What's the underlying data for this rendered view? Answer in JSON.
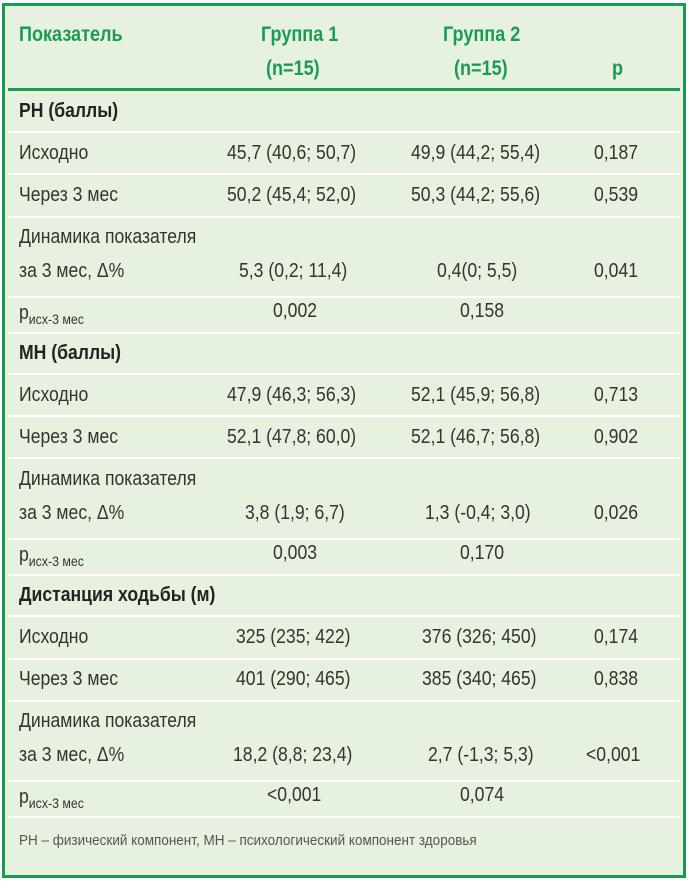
{
  "header": {
    "col_label": "Показатель",
    "group1_name": "Группа 1",
    "group1_n": "(n=15)",
    "group2_name": "Группа 2",
    "group2_n": "(n=15)",
    "p_label": "p"
  },
  "sections": [
    {
      "title": "РН (баллы)",
      "rows": [
        {
          "label": "Исходно",
          "g1": "45,7 (40,6; 50,7)",
          "g2": "49,9 (44,2; 55,4)",
          "p": "0,187"
        },
        {
          "label": "Через 3 мес",
          "g1": "50,2 (45,4; 52,0)",
          "g2": "50,3 (44,2; 55,6)",
          "p": "0,539"
        },
        {
          "label_line1": "Динамика показателя",
          "label_line2": "за 3 мес, Δ%",
          "g1": "5,3 (0,2; 11,4)",
          "g2": "0,4(0; 5,5)",
          "p": "0,041"
        }
      ],
      "p_row": {
        "label_main": "р",
        "label_sub": "исх-3 мес",
        "g1": "0,002",
        "g2": "0,158"
      }
    },
    {
      "title": "МН (баллы)",
      "rows": [
        {
          "label": "Исходно",
          "g1": "47,9 (46,3; 56,3)",
          "g2": "52,1 (45,9; 56,8)",
          "p": "0,713"
        },
        {
          "label": "Через 3 мес",
          "g1": "52,1 (47,8; 60,0)",
          "g2": "52,1 (46,7; 56,8)",
          "p": "0,902"
        },
        {
          "label_line1": "Динамика показателя",
          "label_line2": "за 3 мес, Δ%",
          "g1": "3,8 (1,9; 6,7)",
          "g2": "1,3 (-0,4; 3,0)",
          "p": "0,026"
        }
      ],
      "p_row": {
        "label_main": "р",
        "label_sub": "исх-3 мес",
        "g1": "0,003",
        "g2": "0,170"
      }
    },
    {
      "title": "Дистанция ходьбы (м)",
      "rows": [
        {
          "label": "Исходно",
          "g1": "325 (235; 422)",
          "g2": "376 (326; 450)",
          "p": "0,174"
        },
        {
          "label": "Через 3 мес",
          "g1": "401 (290; 465)",
          "g2": "385 (340; 465)",
          "p": "0,838"
        },
        {
          "label_line1": "Динамика показателя",
          "label_line2": "за 3 мес, Δ%",
          "g1": "18,2 (8,8; 23,4)",
          "g2": "2,7 (-1,3; 5,3)",
          "p": "<0,001"
        }
      ],
      "p_row": {
        "label_main": "р",
        "label_sub": "исх-3 мес",
        "g1": "<0,001",
        "g2": "0,074"
      }
    }
  ],
  "footnote": "РН – физический компонент, МН – психологический компонент здоровья",
  "colors": {
    "accent": "#1a9b52",
    "background": "#e6f2df"
  }
}
